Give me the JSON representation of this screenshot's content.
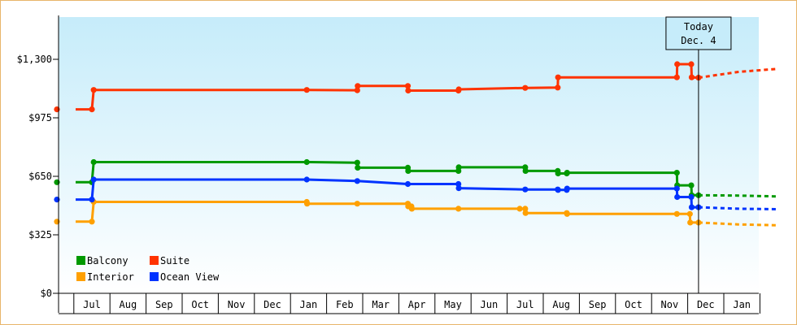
{
  "chart_data": {
    "type": "line",
    "title": "",
    "xlabel": "",
    "ylabel": "",
    "ylim": [
      0,
      1300
    ],
    "y_ticks": [
      {
        "value": 0,
        "label": "$0"
      },
      {
        "value": 325,
        "label": "$325"
      },
      {
        "value": 650,
        "label": "$650"
      },
      {
        "value": 975,
        "label": "$975"
      },
      {
        "value": 1300,
        "label": "$1,300"
      }
    ],
    "x_range": [
      -0.45,
      19.0
    ],
    "months": [
      {
        "label": "Jul",
        "x": 0
      },
      {
        "label": "Aug",
        "x": 1
      },
      {
        "label": "Sep",
        "x": 2
      },
      {
        "label": "Oct",
        "x": 3
      },
      {
        "label": "Nov",
        "x": 4
      },
      {
        "label": "Dec",
        "x": 5
      },
      {
        "label": "Jan",
        "x": 6
      },
      {
        "label": "Feb",
        "x": 7
      },
      {
        "label": "Mar",
        "x": 8
      },
      {
        "label": "Apr",
        "x": 9
      },
      {
        "label": "May",
        "x": 10
      },
      {
        "label": "Jun",
        "x": 11
      },
      {
        "label": "Jul",
        "x": 12
      },
      {
        "label": "Aug",
        "x": 13
      },
      {
        "label": "Sep",
        "x": 14
      },
      {
        "label": "Oct",
        "x": 15
      },
      {
        "label": "Nov",
        "x": 16
      },
      {
        "label": "Dec",
        "x": 17
      },
      {
        "label": "Jan",
        "x": 18
      }
    ],
    "today": {
      "line1": "Today",
      "line2": "Dec. 4",
      "x": 16.8
    },
    "legend_position": "bottom-left",
    "grid": false,
    "series": [
      {
        "name": "Balcony",
        "color": "#009900",
        "points": [
          [
            -0.45,
            617
          ],
          [
            0.0,
            617
          ],
          [
            0.05,
            729
          ],
          [
            5.95,
            729
          ],
          [
            7.35,
            726
          ],
          [
            7.36,
            698
          ],
          [
            8.75,
            698
          ],
          [
            8.76,
            680
          ],
          [
            10.15,
            680
          ],
          [
            10.16,
            700
          ],
          [
            12.0,
            700
          ],
          [
            12.01,
            680
          ],
          [
            12.9,
            680
          ],
          [
            12.91,
            666
          ],
          [
            13.15,
            666
          ],
          [
            13.16,
            670
          ],
          [
            16.2,
            670
          ],
          [
            16.21,
            600
          ],
          [
            16.6,
            600
          ],
          [
            16.61,
            545
          ],
          [
            16.8,
            545
          ]
        ],
        "forecast": [
          [
            16.8,
            545
          ],
          [
            17.9,
            543
          ],
          [
            19.0,
            538
          ]
        ]
      },
      {
        "name": "Interior",
        "color": "#ffa000",
        "points": [
          [
            -0.45,
            398
          ],
          [
            0.0,
            398
          ],
          [
            0.05,
            508
          ],
          [
            5.95,
            508
          ],
          [
            5.96,
            498
          ],
          [
            7.35,
            498
          ],
          [
            8.75,
            498
          ],
          [
            8.76,
            483
          ],
          [
            8.85,
            483
          ],
          [
            8.86,
            470
          ],
          [
            10.15,
            470
          ],
          [
            11.85,
            470
          ],
          [
            12.0,
            470
          ],
          [
            12.01,
            446
          ],
          [
            13.15,
            446
          ],
          [
            13.16,
            441
          ],
          [
            16.2,
            441
          ],
          [
            16.56,
            441
          ],
          [
            16.57,
            393
          ],
          [
            16.8,
            393
          ]
        ],
        "forecast": [
          [
            16.8,
            393
          ],
          [
            17.9,
            383
          ],
          [
            19.0,
            378
          ]
        ]
      },
      {
        "name": "Suite",
        "color": "#ff3300",
        "points": [
          [
            -0.45,
            1022
          ],
          [
            0.0,
            1022
          ],
          [
            0.05,
            1130
          ],
          [
            5.95,
            1130
          ],
          [
            7.35,
            1128
          ],
          [
            7.36,
            1152
          ],
          [
            8.75,
            1152
          ],
          [
            8.76,
            1126
          ],
          [
            10.15,
            1126
          ],
          [
            10.16,
            1133
          ],
          [
            12.0,
            1141
          ],
          [
            12.9,
            1143
          ],
          [
            12.91,
            1200
          ],
          [
            16.2,
            1200
          ],
          [
            16.21,
            1273
          ],
          [
            16.6,
            1273
          ],
          [
            16.61,
            1200
          ],
          [
            16.8,
            1198
          ]
        ],
        "forecast": [
          [
            16.8,
            1198
          ],
          [
            17.9,
            1230
          ],
          [
            19.0,
            1247
          ]
        ]
      },
      {
        "name": "Ocean View",
        "color": "#0033ff",
        "points": [
          [
            -0.45,
            521
          ],
          [
            0.0,
            521
          ],
          [
            0.05,
            632
          ],
          [
            5.95,
            632
          ],
          [
            7.35,
            624
          ],
          [
            8.75,
            607
          ],
          [
            10.15,
            607
          ],
          [
            10.16,
            584
          ],
          [
            12.0,
            577
          ],
          [
            12.9,
            577
          ],
          [
            12.91,
            574
          ],
          [
            13.15,
            574
          ],
          [
            13.16,
            582
          ],
          [
            16.2,
            582
          ],
          [
            16.21,
            535
          ],
          [
            16.6,
            535
          ],
          [
            16.61,
            478
          ],
          [
            16.8,
            478
          ]
        ],
        "forecast": [
          [
            16.8,
            478
          ],
          [
            17.9,
            470
          ],
          [
            19.0,
            467
          ]
        ]
      }
    ]
  }
}
